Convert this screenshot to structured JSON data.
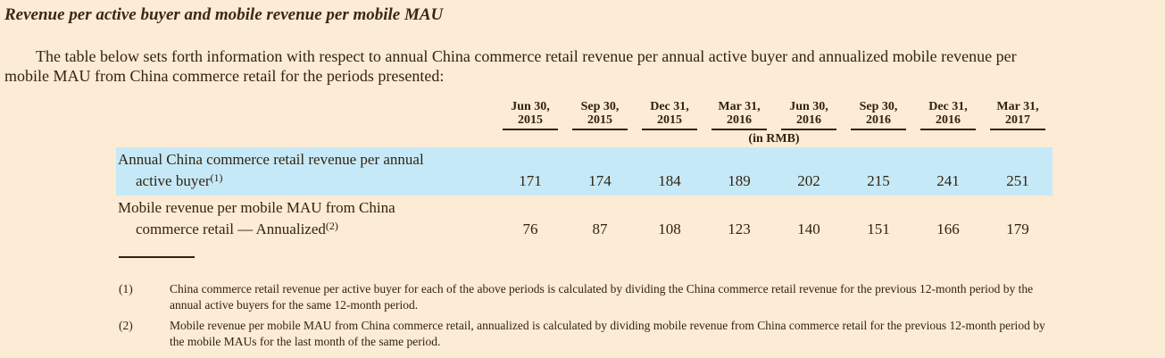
{
  "page": {
    "title": "Revenue per active buyer and mobile revenue per mobile MAU",
    "intro_lines": [
      "The table below sets forth information with respect to annual China commerce retail revenue per annual active buyer and annualized mobile revenue per",
      "mobile MAU from China commerce retail for the periods presented:"
    ]
  },
  "table": {
    "unit_label": "(in RMB)",
    "columns": [
      {
        "date": "Jun 30,",
        "year": "2015"
      },
      {
        "date": "Sep 30,",
        "year": "2015"
      },
      {
        "date": "Dec 31,",
        "year": "2015"
      },
      {
        "date": "Mar 31,",
        "year": "2016"
      },
      {
        "date": "Jun 30,",
        "year": "2016"
      },
      {
        "date": "Sep 30,",
        "year": "2016"
      },
      {
        "date": "Dec 31,",
        "year": "2016"
      },
      {
        "date": "Mar 31,",
        "year": "2017"
      }
    ],
    "rows": [
      {
        "label_lines": [
          "Annual China commerce retail revenue per annual",
          "active buyer"
        ],
        "footnote_ref": "(1)",
        "values": [
          "171",
          "174",
          "184",
          "189",
          "202",
          "215",
          "241",
          "251"
        ],
        "highlighted": true
      },
      {
        "label_lines": [
          "Mobile revenue per mobile MAU from China",
          "commerce retail — Annualized"
        ],
        "footnote_ref": "(2)",
        "values": [
          "76",
          "87",
          "108",
          "123",
          "140",
          "151",
          "166",
          "179"
        ],
        "highlighted": false
      }
    ]
  },
  "footnotes": [
    {
      "marker": "(1)",
      "text_lines": [
        "China commerce retail revenue per active buyer for each of the above periods is calculated by dividing the China commerce retail revenue for the previous 12-month period by the",
        "annual active buyers for the same 12-month period."
      ]
    },
    {
      "marker": "(2)",
      "text_lines": [
        "Mobile revenue per mobile MAU from China commerce retail, annualized is calculated by dividing mobile revenue from China commerce retail for the previous 12-month period by",
        "the mobile MAUs for the last month of the same period."
      ]
    }
  ],
  "colors": {
    "background": "#fcebd5",
    "row_highlight": "#c6e9f8",
    "text": "#32230f"
  }
}
